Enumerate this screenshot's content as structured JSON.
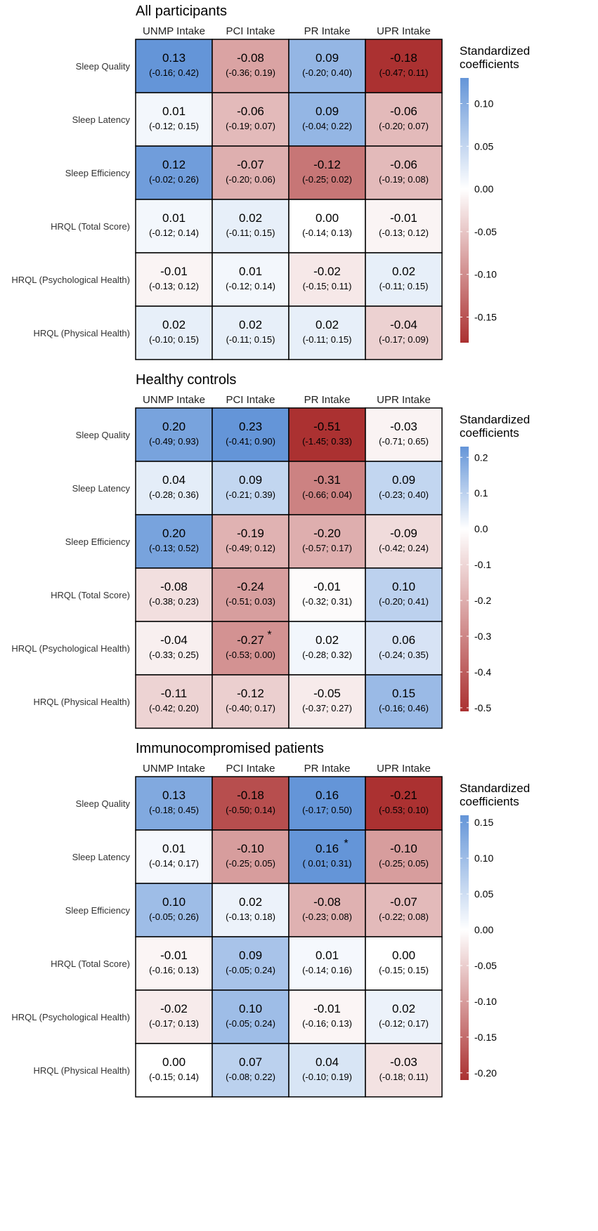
{
  "colors": {
    "positive": "#6495d8",
    "zero": "#ffffff",
    "negative": "#ab3131",
    "grid": "#000000"
  },
  "chart_data": [
    {
      "type": "heatmap",
      "title": "All participants",
      "columns": [
        "UNMP Intake",
        "PCI Intake",
        "PR Intake",
        "UPR Intake"
      ],
      "rows": [
        "Sleep Quality",
        "Sleep Latency",
        "Sleep Efficiency",
        "HRQL (Total Score)",
        "HRQL (Psychological Health)",
        "HRQL (Physical Health)"
      ],
      "values": [
        [
          0.13,
          -0.08,
          0.09,
          -0.18
        ],
        [
          0.01,
          -0.06,
          0.09,
          -0.06
        ],
        [
          0.12,
          -0.07,
          -0.12,
          -0.06
        ],
        [
          0.01,
          0.02,
          0.0,
          -0.01
        ],
        [
          -0.01,
          0.01,
          -0.02,
          0.02
        ],
        [
          0.02,
          0.02,
          0.02,
          -0.04
        ]
      ],
      "value_labels": [
        [
          "0.13",
          "-0.08",
          "0.09",
          "-0.18"
        ],
        [
          "0.01",
          "-0.06",
          "0.09",
          "-0.06"
        ],
        [
          "0.12",
          "-0.07",
          "-0.12",
          "-0.06"
        ],
        [
          "0.01",
          "0.02",
          "0.00",
          "-0.01"
        ],
        [
          "-0.01",
          "0.01",
          "-0.02",
          "0.02"
        ],
        [
          "0.02",
          "0.02",
          "0.02",
          "-0.04"
        ]
      ],
      "ci_labels": [
        [
          "(-0.16; 0.42)",
          "(-0.36; 0.19)",
          "(-0.20; 0.40)",
          "(-0.47; 0.11)"
        ],
        [
          "(-0.12; 0.15)",
          "(-0.19; 0.07)",
          "(-0.04; 0.22)",
          "(-0.20; 0.07)"
        ],
        [
          "(-0.02; 0.26)",
          "(-0.20; 0.06)",
          "(-0.25; 0.02)",
          "(-0.19; 0.08)"
        ],
        [
          "(-0.12; 0.14)",
          "(-0.11; 0.15)",
          "(-0.14; 0.13)",
          "(-0.13; 0.12)"
        ],
        [
          "(-0.13; 0.12)",
          "(-0.12; 0.14)",
          "(-0.15; 0.11)",
          "(-0.11; 0.15)"
        ],
        [
          "(-0.10; 0.15)",
          "(-0.11; 0.15)",
          "(-0.11; 0.15)",
          "(-0.17; 0.09)"
        ]
      ],
      "significant": [],
      "legend": {
        "title": [
          "Standardized",
          "coefficients"
        ],
        "range": [
          -0.18,
          0.13
        ],
        "ticks": [
          0.1,
          0.05,
          0.0,
          -0.05,
          -0.1,
          -0.15
        ],
        "tick_labels": [
          "0.10",
          "0.05",
          "0.00",
          "-0.05",
          "-0.10",
          "-0.15"
        ]
      }
    },
    {
      "type": "heatmap",
      "title": "Healthy controls",
      "columns": [
        "UNMP Intake",
        "PCI Intake",
        "PR Intake",
        "UPR Intake"
      ],
      "rows": [
        "Sleep Quality",
        "Sleep Latency",
        "Sleep Efficiency",
        "HRQL (Total Score)",
        "HRQL (Psychological Health)",
        "HRQL (Physical Health)"
      ],
      "values": [
        [
          0.2,
          0.23,
          -0.51,
          -0.03
        ],
        [
          0.04,
          0.09,
          -0.31,
          0.09
        ],
        [
          0.2,
          -0.19,
          -0.2,
          -0.09
        ],
        [
          -0.08,
          -0.24,
          -0.01,
          0.1
        ],
        [
          -0.04,
          -0.27,
          0.02,
          0.06
        ],
        [
          -0.11,
          -0.12,
          -0.05,
          0.15
        ]
      ],
      "value_labels": [
        [
          "0.20",
          "0.23",
          "-0.51",
          "-0.03"
        ],
        [
          "0.04",
          "0.09",
          "-0.31",
          "0.09"
        ],
        [
          "0.20",
          "-0.19",
          "-0.20",
          "-0.09"
        ],
        [
          "-0.08",
          "-0.24",
          "-0.01",
          "0.10"
        ],
        [
          "-0.04",
          "-0.27",
          "0.02",
          "0.06"
        ],
        [
          "-0.11",
          "-0.12",
          "-0.05",
          "0.15"
        ]
      ],
      "ci_labels": [
        [
          "(-0.49; 0.93)",
          "(-0.41; 0.90)",
          "(-1.45; 0.33)",
          "(-0.71; 0.65)"
        ],
        [
          "(-0.28; 0.36)",
          "(-0.21; 0.39)",
          "(-0.66; 0.04)",
          "(-0.23; 0.40)"
        ],
        [
          "(-0.13; 0.52)",
          "(-0.49; 0.12)",
          "(-0.57; 0.17)",
          "(-0.42; 0.24)"
        ],
        [
          "(-0.38; 0.23)",
          "(-0.51; 0.03)",
          "(-0.32; 0.31)",
          "(-0.20; 0.41)"
        ],
        [
          "(-0.33; 0.25)",
          "(-0.53; 0.00)",
          "(-0.28; 0.32)",
          "(-0.24; 0.35)"
        ],
        [
          "(-0.42; 0.20)",
          "(-0.40; 0.17)",
          "(-0.37; 0.27)",
          "(-0.16; 0.46)"
        ]
      ],
      "significant": [
        [
          4,
          1
        ]
      ],
      "legend": {
        "title": [
          "Standardized",
          "coefficients"
        ],
        "range": [
          -0.51,
          0.23
        ],
        "ticks": [
          0.2,
          0.1,
          0.0,
          -0.1,
          -0.2,
          -0.3,
          -0.4,
          -0.5
        ],
        "tick_labels": [
          "0.2",
          "0.1",
          "0.0",
          "-0.1",
          "-0.2",
          "-0.3",
          "-0.4",
          "-0.5"
        ]
      }
    },
    {
      "type": "heatmap",
      "title": "Immunocompromised patients",
      "columns": [
        "UNMP Intake",
        "PCI Intake",
        "PR Intake",
        "UPR Intake"
      ],
      "rows": [
        "Sleep Quality",
        "Sleep Latency",
        "Sleep Efficiency",
        "HRQL (Total Score)",
        "HRQL (Psychological Health)",
        "HRQL (Physical Health)"
      ],
      "values": [
        [
          0.13,
          -0.18,
          0.16,
          -0.21
        ],
        [
          0.01,
          -0.1,
          0.16,
          -0.1
        ],
        [
          0.1,
          0.02,
          -0.08,
          -0.07
        ],
        [
          -0.01,
          0.09,
          0.01,
          0.0
        ],
        [
          -0.02,
          0.1,
          -0.01,
          0.02
        ],
        [
          0.0,
          0.07,
          0.04,
          -0.03
        ]
      ],
      "value_labels": [
        [
          "0.13",
          "-0.18",
          "0.16",
          "-0.21"
        ],
        [
          "0.01",
          "-0.10",
          "0.16",
          "-0.10"
        ],
        [
          "0.10",
          "0.02",
          "-0.08",
          "-0.07"
        ],
        [
          "-0.01",
          "0.09",
          "0.01",
          "0.00"
        ],
        [
          "-0.02",
          "0.10",
          "-0.01",
          "0.02"
        ],
        [
          "0.00",
          "0.07",
          "0.04",
          "-0.03"
        ]
      ],
      "ci_labels": [
        [
          "(-0.18; 0.45)",
          "(-0.50; 0.14)",
          "(-0.17; 0.50)",
          "(-0.53; 0.10)"
        ],
        [
          "(-0.14; 0.17)",
          "(-0.25; 0.05)",
          "( 0.01; 0.31)",
          "(-0.25; 0.05)"
        ],
        [
          "(-0.05; 0.26)",
          "(-0.13; 0.18)",
          "(-0.23; 0.08)",
          "(-0.22; 0.08)"
        ],
        [
          "(-0.16; 0.13)",
          "(-0.05; 0.24)",
          "(-0.14; 0.16)",
          "(-0.15; 0.15)"
        ],
        [
          "(-0.17; 0.13)",
          "(-0.05; 0.24)",
          "(-0.16; 0.13)",
          "(-0.12; 0.17)"
        ],
        [
          "(-0.15; 0.14)",
          "(-0.08; 0.22)",
          "(-0.10; 0.19)",
          "(-0.18; 0.11)"
        ]
      ],
      "significant": [
        [
          1,
          2
        ]
      ],
      "legend": {
        "title": [
          "Standardized",
          "coefficients"
        ],
        "range": [
          -0.21,
          0.16
        ],
        "ticks": [
          0.15,
          0.1,
          0.05,
          0.0,
          -0.05,
          -0.1,
          -0.15,
          -0.2
        ],
        "tick_labels": [
          "0.15",
          "0.10",
          "0.05",
          "0.00",
          "-0.05",
          "-0.10",
          "-0.15",
          "-0.20"
        ]
      }
    }
  ]
}
